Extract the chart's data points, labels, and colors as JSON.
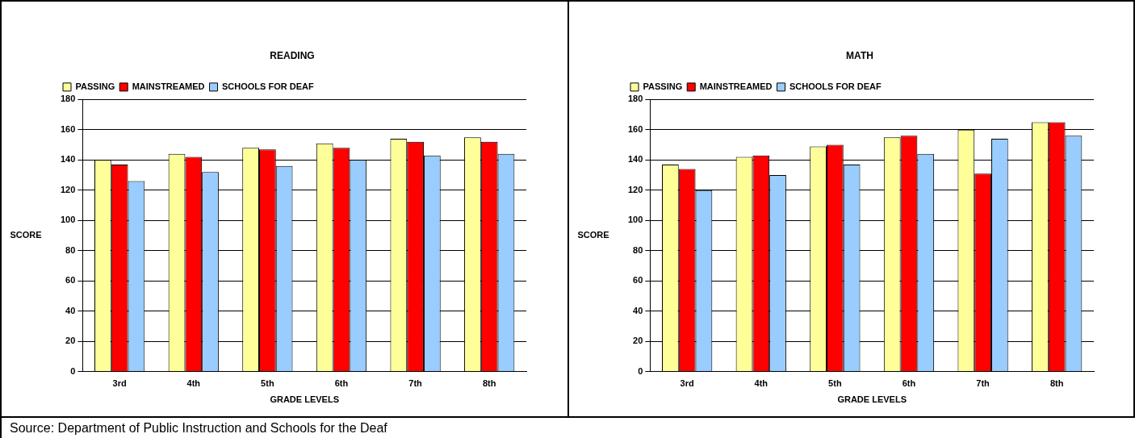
{
  "chart_data": [
    {
      "type": "bar",
      "title": "READING",
      "xlabel": "GRADE LEVELS",
      "ylabel": "SCORE",
      "categories": [
        "3rd",
        "4th",
        "5th",
        "6th",
        "7th",
        "8th"
      ],
      "series": [
        {
          "name": "PASSING",
          "color": "#ffff99",
          "values": [
            140,
            144,
            148,
            151,
            154,
            155
          ]
        },
        {
          "name": "MAINSTREAMED",
          "color": "#ff0000",
          "values": [
            137,
            142,
            147,
            148,
            152,
            152
          ]
        },
        {
          "name": "SCHOOLS FOR DEAF",
          "color": "#99ccff",
          "values": [
            126,
            132,
            136,
            140,
            143,
            144
          ]
        }
      ],
      "ylim": [
        0,
        180
      ],
      "yticks": [
        0,
        20,
        40,
        60,
        80,
        100,
        120,
        140,
        160,
        180
      ],
      "grid": "y",
      "legend": "top",
      "annotations": [
        "Source:  Department of Public Instruction and Schools for the Deaf"
      ]
    },
    {
      "type": "bar",
      "title": "MATH",
      "xlabel": "GRADE LEVELS",
      "ylabel": "SCORE",
      "categories": [
        "3rd",
        "4th",
        "5th",
        "6th",
        "7th",
        "8th"
      ],
      "series": [
        {
          "name": "PASSING",
          "color": "#ffff99",
          "values": [
            137,
            142,
            149,
            155,
            160,
            165
          ]
        },
        {
          "name": "MAINSTREAMED",
          "color": "#ff0000",
          "values": [
            134,
            143,
            150,
            156,
            131,
            165
          ]
        },
        {
          "name": "SCHOOLS FOR DEAF",
          "color": "#99ccff",
          "values": [
            120,
            130,
            137,
            144,
            154,
            156
          ]
        }
      ],
      "ylim": [
        0,
        180
      ],
      "yticks": [
        0,
        20,
        40,
        60,
        80,
        100,
        120,
        140,
        160,
        180
      ],
      "grid": "y",
      "legend": "top"
    }
  ]
}
